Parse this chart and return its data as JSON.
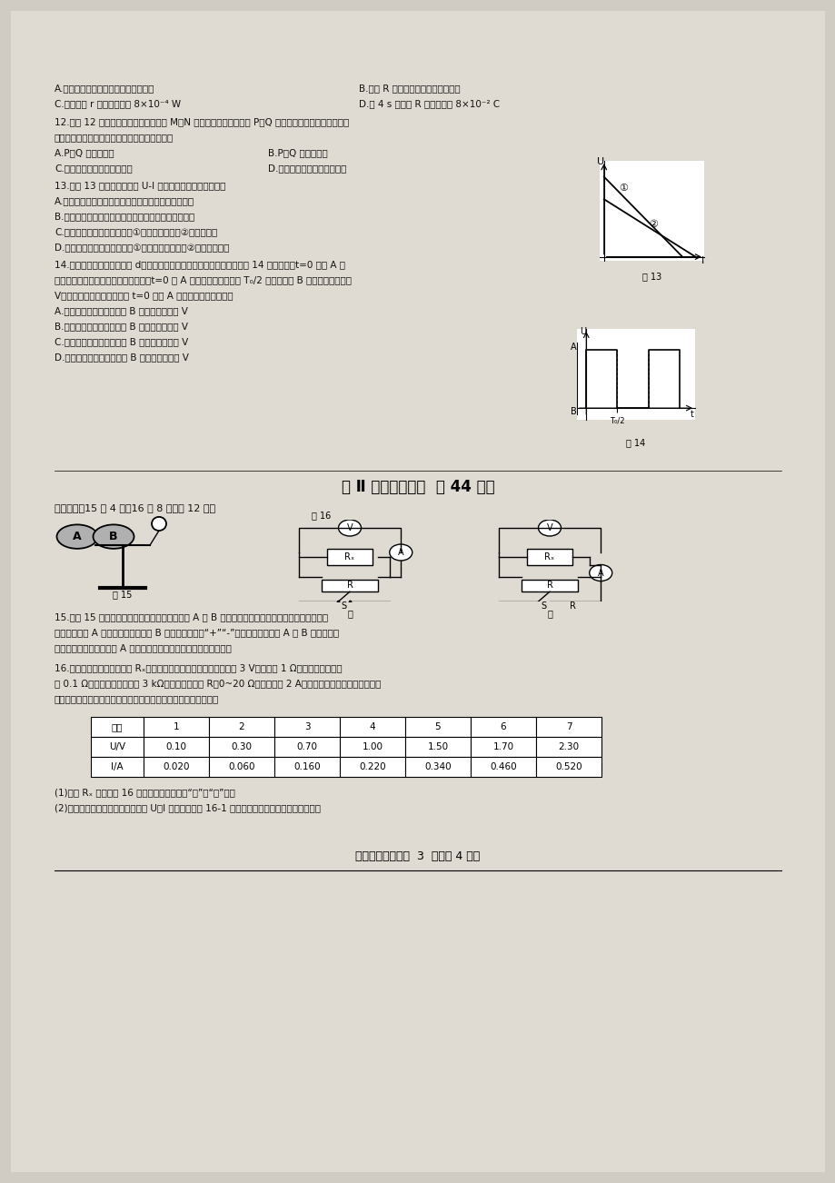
{
  "bg_color": "#d0ccc4",
  "page_bg": "#e0dbd2",
  "lines_top": [
    [
      "A.线圈中的感应电流方向为逆时针方向",
      "B.电阵 R 两端的电压随时间均匀增大"
    ],
    [
      "C.线圈电阵 r 消耗的功率为 8×10⁻⁴ W",
      "D.前 4 s 内通过 R 的电荷量为 8×10⁻² C"
    ]
  ],
  "q12_lines": [
    "12.如图 12 所示，光滑固定的金属导轨 M、N 水平放置，两根导体棒 P、Q 平行放置在导轨上，形成一个",
    "闭合回路，一条形磁铁从高处下落接近回路时："
  ],
  "q12_opts": [
    [
      "A.P、Q 将相互远离",
      "B.P、Q 将相互靠拢"
    ],
    [
      "C.穿过回路的磁通量一定增大",
      "D.穿过回路的磁通量可能减小"
    ]
  ],
  "q13_lines": [
    "13.如图 13 所示为两电源的 U-I 图像，则下列说法正确的是",
    "A.当外接相同的电阵时，两电源的路端电压有可能相等",
    "B.当外接相同的电阵时，两电源的输出功率有可能相等",
    "C.当外接相同的电阵时，电源①的总功率比电源②的总功率大",
    "D.当外接相同的电阵时，电源①的输出功率比电源②的输出功率大"
  ],
  "q14_lines": [
    "14.平行板电容器两极板相距 d，板上有两个正对的小孔，两极板加上如图 14 所示电压，t=0 时从 A 板",
    "小孔释放一带正电的粒子（不计重力，t=0 时 A 板电势高），粒子在 T₀/2 时恰好穿过 B 板小孔，且速度为",
    "V；现只改变两板距离，付从 t=0 时从 A 板小孔释放粒子；则：",
    "A.两板距离减小时粒子到达 B 板速度一定等于 V",
    "B.两板距离减小时粒子到达 B 板速度可能小于 V",
    "C.两板距离增大时粒子到达 B 板速度可能等于 V",
    "D.两板距离增大时粒子到达 B 板速度一定小于 V"
  ],
  "section2_title": "第 Ⅱ 卷（非选择题  共 44 分）",
  "section3_label": "三、实验（15 题 4 分，16 题 8 分，共 12 分）",
  "fig13_label": "图 13",
  "fig14_label": "图 14",
  "fig15_label": "图 15",
  "fig16_label": "图 16",
  "jia_label": "甲",
  "yi_label": "乙",
  "q15_lines": [
    "15.如图 15 将两个与外界绝缘的不带电枕形导体 A 与 B 紧紧袊在一起，将带有正电荷的绝缘导体球",
    "靠近枕形导体 A 但不接触，枕形导体 B 带　　　电（填“+”“-”）；先将枕形导体 A 与 B 分开，再移",
    "去绝缘导体球，枕形导体 A 上的金属答　　　　（填张开或闭合）。"
  ],
  "q16_lines": [
    "16.实验小组用伏安法测电阵 Rₓ，实验所用器材为：电池组（电动势 3 V，内阱约 1 Ω）、电流表（内阱",
    "约 0.1 Ω）、电压表（内阱约 3 kΩ）、滑动变阱器 R（0~20 Ω，额定电流 2 A）、开关、导线若干。某小组同",
    "学利用以上器材正确连接好电路，进行实验测量，记录数据如下："
  ],
  "table_header": [
    "次数",
    "1",
    "2",
    "3",
    "4",
    "5",
    "6",
    "7"
  ],
  "table_UV": [
    "U/V",
    "0.10",
    "0.30",
    "0.70",
    "1.00",
    "1.50",
    "1.70",
    "2.30"
  ],
  "table_IA": [
    "I/A",
    "0.020",
    "0.060",
    "0.160",
    "0.220",
    "0.340",
    "0.460",
    "0.520"
  ],
  "q_ans_lines": [
    "(1)测量 Rₓ 是采用图 16 中的　　　图（选填“甲”或“乙”）。",
    "(2)这个小组的同学在坐标纸上建立 U、I 坐标系，如图 16-1 所示，图中已标出了与测量数据对应"
  ],
  "page_label": "高二物理试题卷第  3  页（共 4 页）"
}
